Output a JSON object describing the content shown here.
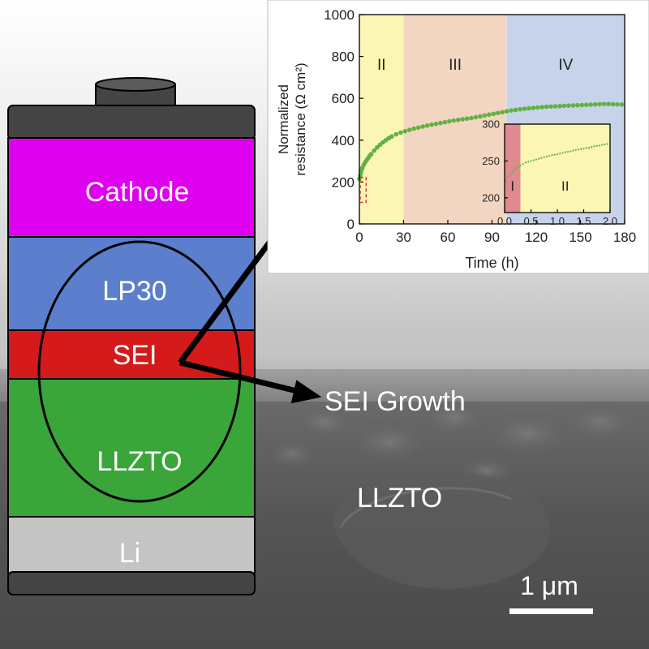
{
  "battery": {
    "layers": {
      "cathode": "Cathode",
      "lp30": "LP30",
      "sei": "SEI",
      "llzto": "LLZTO",
      "li": "Li"
    },
    "colors": {
      "cathode": "#e000f0",
      "lp30": "#5b7fcc",
      "sei": "#d41a1a",
      "llzto": "#3aa63a",
      "li": "#c4c4c4",
      "cap": "#444444"
    }
  },
  "annotations": {
    "sei_growth": "SEI Growth",
    "sem_llzto": "LLZTO",
    "scale_bar": "1 μm"
  },
  "chart_data": [
    {
      "type": "scatter",
      "ylabel_line1": "Normalized",
      "ylabel_line2": "resistance (Ω cm²)",
      "xlabel": "Time (h)",
      "xlim": [
        0,
        180
      ],
      "ylim": [
        0,
        1000
      ],
      "xticks": [
        "0",
        "30",
        "60",
        "90",
        "120",
        "150",
        "180"
      ],
      "yticks": [
        "0",
        "200",
        "400",
        "600",
        "800",
        "1000"
      ],
      "regions": [
        {
          "label": "II",
          "x0": 0,
          "x1": 30,
          "color": "#fbf6b4"
        },
        {
          "label": "III",
          "x0": 30,
          "x1": 100,
          "color": "#f3d6c1"
        },
        {
          "label": "IV",
          "x0": 100,
          "x1": 180,
          "color": "#c7d3ea"
        }
      ],
      "series_color": "#62b144",
      "x": [
        0,
        0.5,
        1,
        1.5,
        2,
        3,
        4,
        5,
        6,
        7,
        8,
        10,
        12,
        14,
        16,
        18,
        20,
        22,
        25,
        28,
        31,
        34,
        37,
        40,
        43,
        46,
        49,
        52,
        55,
        58,
        61,
        64,
        67,
        70,
        73,
        76,
        79,
        82,
        85,
        88,
        91,
        94,
        97,
        100,
        103,
        106,
        109,
        112,
        115,
        118,
        121,
        124,
        127,
        130,
        133,
        136,
        139,
        142,
        145,
        148,
        151,
        154,
        157,
        160,
        163,
        166,
        169,
        172,
        175,
        178
      ],
      "y": [
        215,
        230,
        245,
        258,
        268,
        282,
        295,
        305,
        315,
        325,
        333,
        350,
        365,
        378,
        390,
        400,
        410,
        418,
        428,
        436,
        443,
        449,
        455,
        460,
        465,
        470,
        474,
        478,
        482,
        486,
        490,
        494,
        497,
        500,
        503,
        506,
        510,
        514,
        518,
        522,
        526,
        530,
        534,
        538,
        542,
        545,
        548,
        550,
        552,
        554,
        556,
        558,
        560,
        561,
        562,
        563,
        564,
        565,
        566,
        567,
        568,
        569,
        570,
        571,
        572,
        573,
        573,
        572,
        571,
        570
      ]
    },
    {
      "type": "scatter",
      "xlim": [
        0,
        2
      ],
      "ylim": [
        180,
        300
      ],
      "xticks": [
        "0.0",
        "0.5",
        "1.0",
        "1.5",
        "2.0"
      ],
      "yticks": [
        "200",
        "250",
        "300"
      ],
      "regions": [
        {
          "label": "I",
          "x0": 0,
          "x1": 0.3,
          "color": "#e08a8f"
        },
        {
          "label": "II",
          "x0": 0.3,
          "x1": 2.0,
          "color": "#fbf6b4"
        }
      ],
      "series_color": "#62b144",
      "x": [
        0.02,
        0.06,
        0.1,
        0.14,
        0.18,
        0.22,
        0.26,
        0.3,
        0.35,
        0.4,
        0.45,
        0.5,
        0.55,
        0.6,
        0.65,
        0.7,
        0.75,
        0.8,
        0.85,
        0.9,
        0.95,
        1.0,
        1.05,
        1.1,
        1.15,
        1.2,
        1.25,
        1.3,
        1.35,
        1.4,
        1.45,
        1.5,
        1.55,
        1.6,
        1.65,
        1.7,
        1.75,
        1.8,
        1.85,
        1.9,
        1.95
      ],
      "y": [
        223,
        228,
        232,
        235,
        238,
        240,
        242,
        244,
        246,
        248,
        249,
        250,
        251,
        252,
        253,
        254,
        255,
        256,
        257,
        258,
        258.5,
        259,
        260,
        261,
        262,
        262.5,
        263,
        264,
        265,
        265.5,
        266,
        267,
        267.5,
        268,
        269,
        270,
        270.5,
        271,
        272,
        272.5,
        273
      ]
    }
  ]
}
